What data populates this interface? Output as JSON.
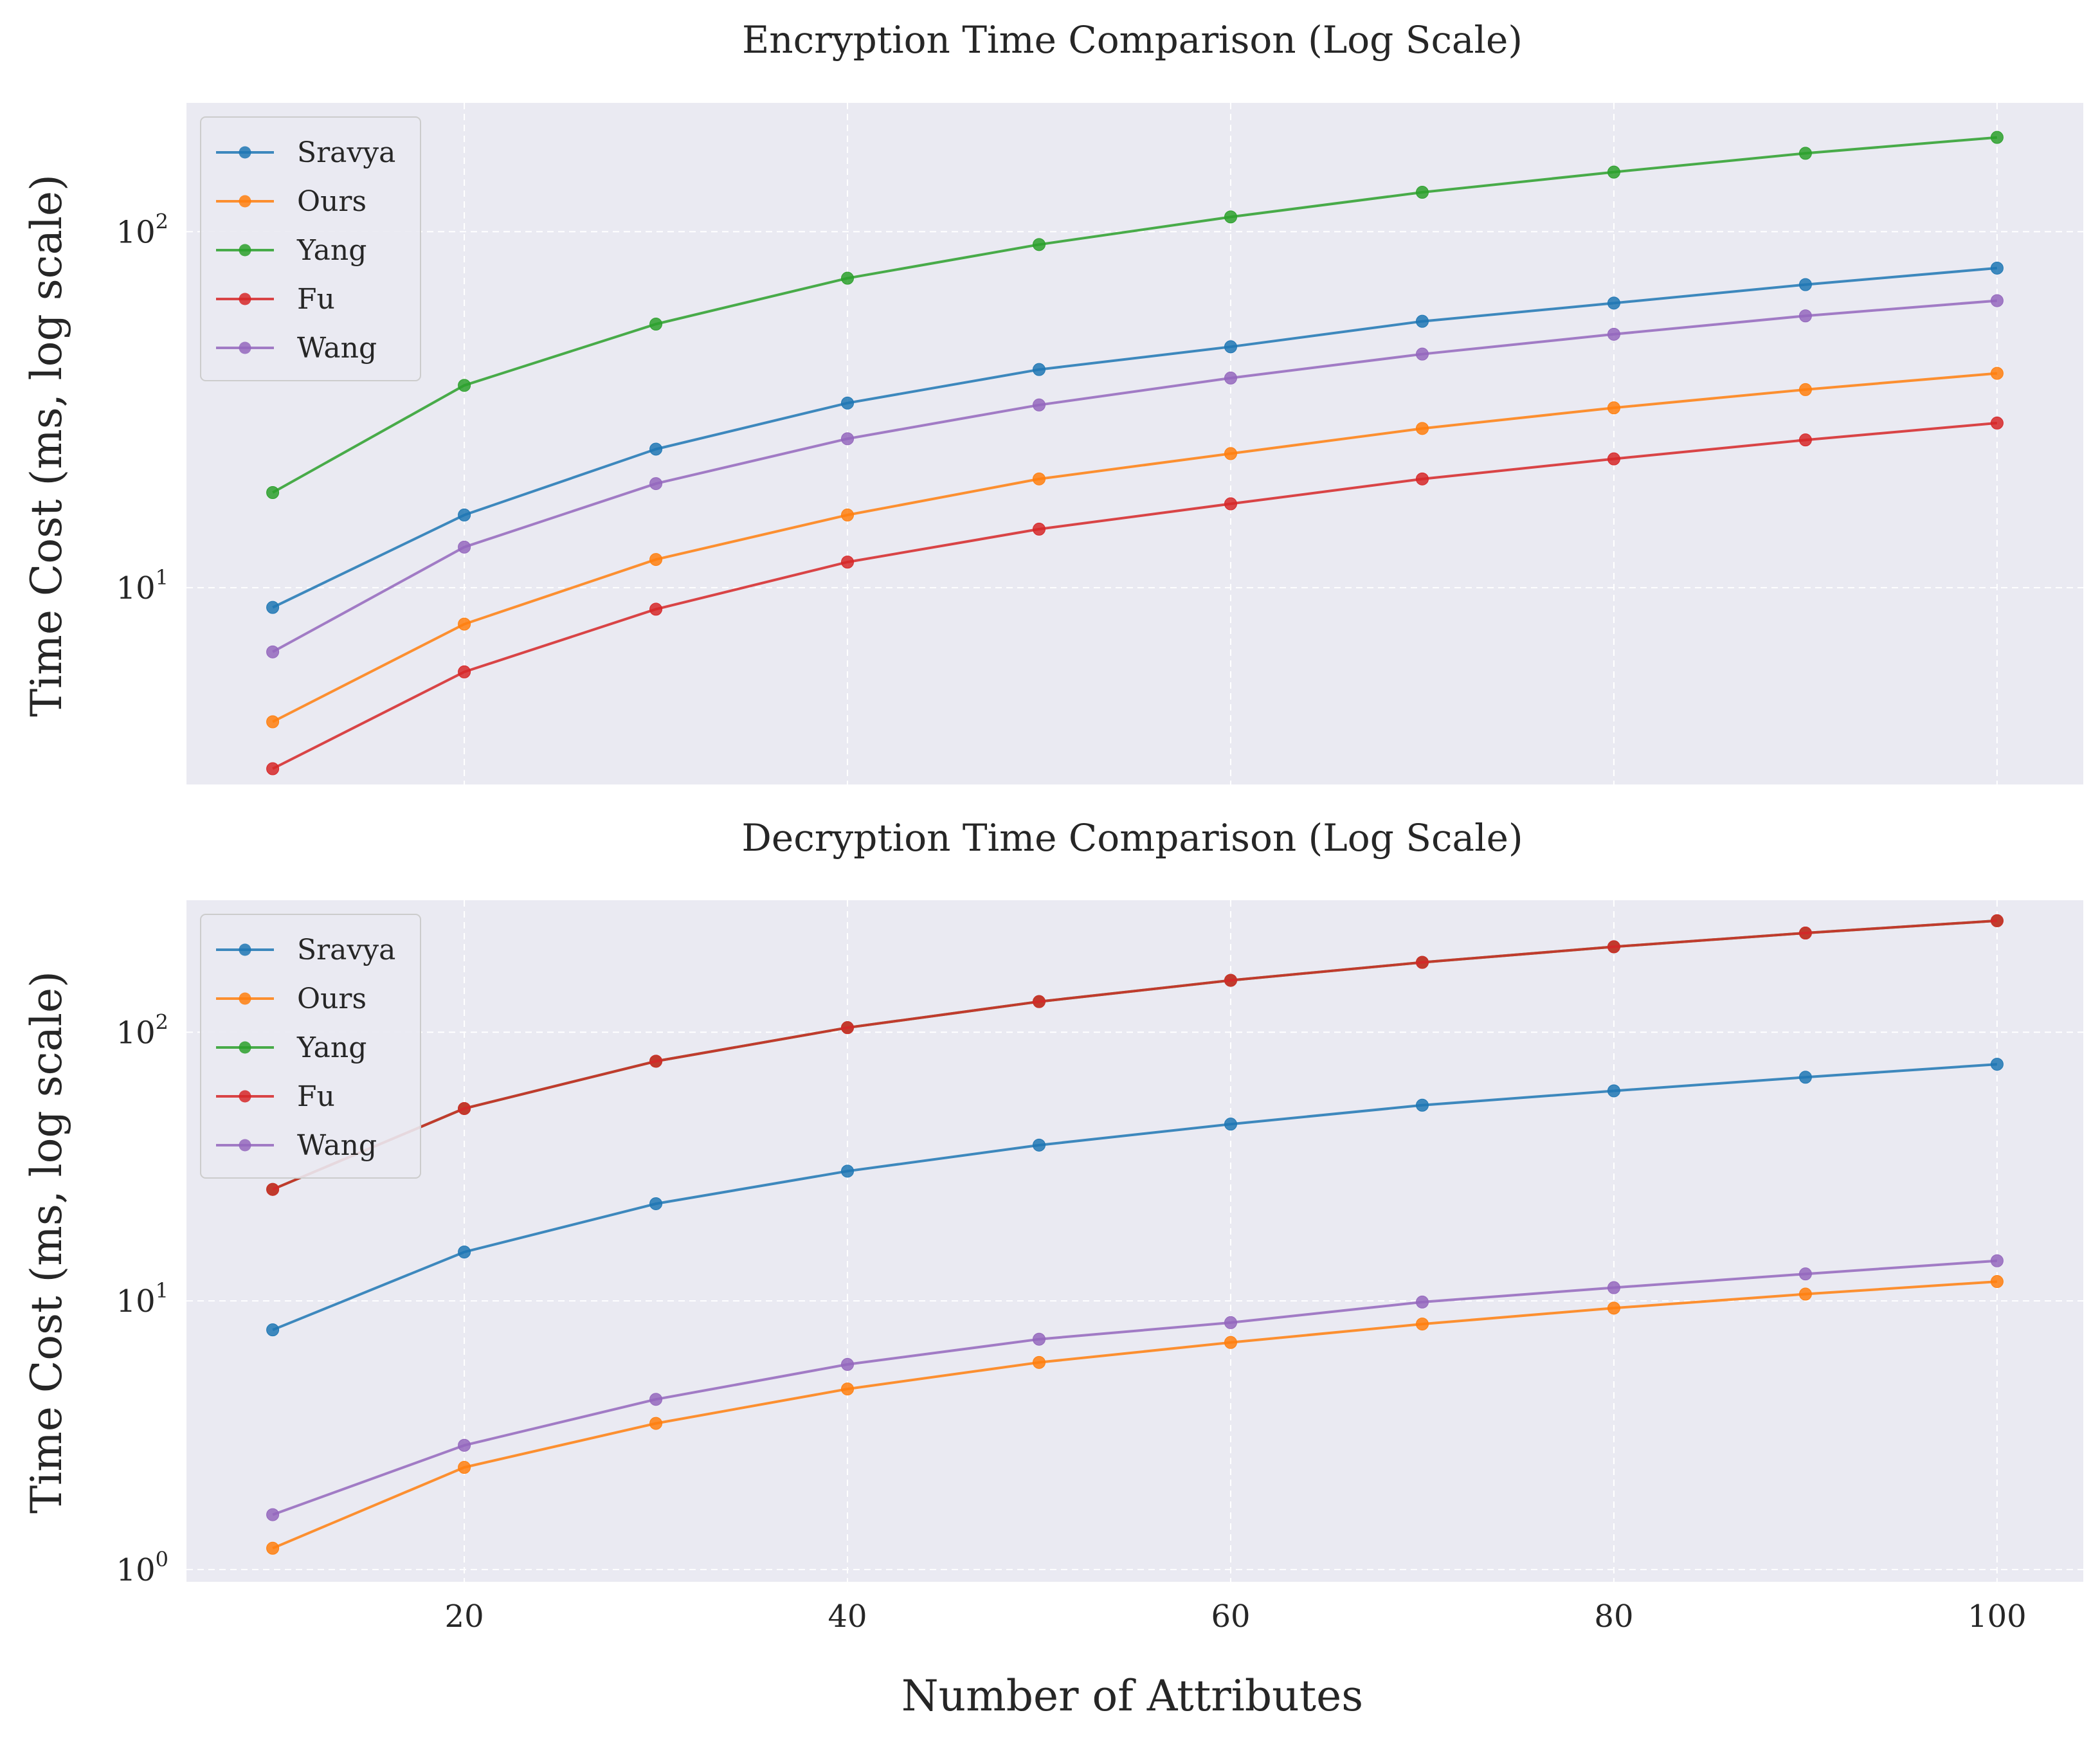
{
  "chart_data": [
    {
      "type": "line",
      "title": "Encryption Time Comparison (Log Scale)",
      "xlabel": "",
      "ylabel": "Time Cost (ms, log scale)",
      "yscale": "log",
      "ylim": [
        2.8,
        230
      ],
      "xlim": [
        5.5,
        104.5
      ],
      "x": [
        10,
        20,
        30,
        40,
        50,
        60,
        70,
        80,
        90,
        100
      ],
      "xticks": [
        20,
        40,
        60,
        80,
        100
      ],
      "yticks": [
        {
          "base": "10",
          "exp": "1",
          "value": 10
        },
        {
          "base": "10",
          "exp": "2",
          "value": 100
        }
      ],
      "grid": true,
      "legend_position": "upper left",
      "series": [
        {
          "name": "Sravya",
          "color": "#1f77b4",
          "values": [
            8.8,
            16,
            24.5,
            33,
            41,
            47.5,
            56,
            63,
            71,
            79
          ]
        },
        {
          "name": "Ours",
          "color": "#ff7f0e",
          "values": [
            4.2,
            7.9,
            12,
            16,
            20.2,
            23.8,
            28,
            32,
            36,
            40
          ]
        },
        {
          "name": "Yang",
          "color": "#2ca02c",
          "values": [
            18.5,
            37,
            55,
            74,
            92,
            110,
            129,
            147,
            166,
            184
          ]
        },
        {
          "name": "Fu",
          "color": "#d62728",
          "values": [
            3.1,
            5.8,
            8.7,
            11.8,
            14.6,
            17.2,
            20.2,
            23,
            26,
            29
          ]
        },
        {
          "name": "Wang",
          "color": "#9467bd",
          "values": [
            6.6,
            13,
            19.6,
            26.2,
            32.6,
            38.8,
            45.3,
            51.5,
            58,
            64
          ]
        }
      ]
    },
    {
      "type": "line",
      "title": "Decryption Time Comparison (Log Scale)",
      "xlabel": "Number of Attributes",
      "ylabel": "Time Cost (ms, log scale)",
      "yscale": "log",
      "ylim": [
        0.9,
        310
      ],
      "xlim": [
        5.5,
        104.5
      ],
      "x": [
        10,
        20,
        30,
        40,
        50,
        60,
        70,
        80,
        90,
        100
      ],
      "xticks": [
        20,
        40,
        60,
        80,
        100
      ],
      "yticks": [
        {
          "base": "10",
          "exp": "0",
          "value": 1
        },
        {
          "base": "10",
          "exp": "1",
          "value": 10
        },
        {
          "base": "10",
          "exp": "2",
          "value": 100
        }
      ],
      "grid": true,
      "legend_position": "upper left",
      "series": [
        {
          "name": "Sravya",
          "color": "#1f77b4",
          "values": [
            7.8,
            15.2,
            23,
            30.4,
            38,
            45.5,
            53.5,
            60.5,
            68,
            76
          ]
        },
        {
          "name": "Ours",
          "color": "#ff7f0e",
          "values": [
            1.2,
            2.4,
            3.5,
            4.7,
            5.9,
            7,
            8.2,
            9.4,
            10.6,
            11.8
          ]
        },
        {
          "name": "Yang",
          "color": "#2ca02c",
          "values": [
            26,
            52,
            78,
            104,
            130,
            156,
            182,
            208,
            234,
            260
          ]
        },
        {
          "name": "Fu",
          "color": "#d62728",
          "values": [
            26,
            52,
            78,
            104,
            130,
            156,
            182,
            208,
            234,
            260
          ]
        },
        {
          "name": "Wang",
          "color": "#9467bd",
          "values": [
            1.6,
            2.9,
            4.3,
            5.8,
            7.2,
            8.3,
            9.9,
            11.2,
            12.6,
            14.1
          ]
        }
      ]
    }
  ]
}
